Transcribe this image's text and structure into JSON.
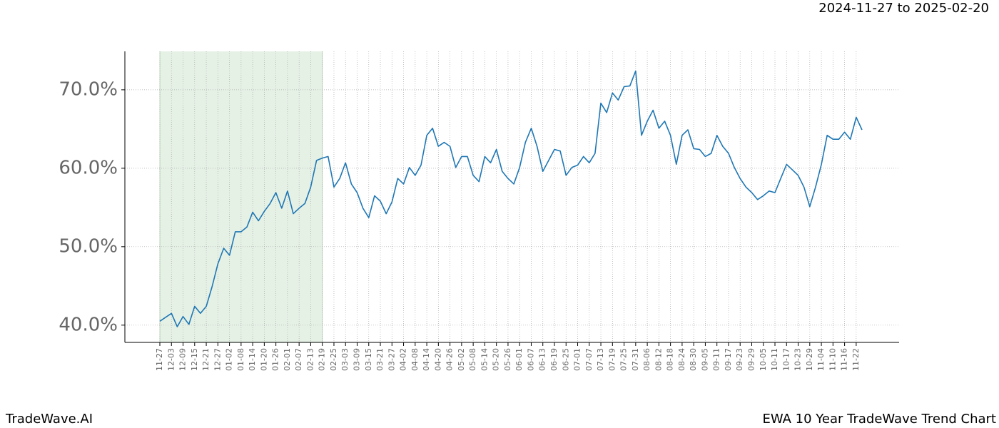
{
  "chart_data": {
    "type": "line",
    "title": "EWA 10 Year TradeWave Trend Chart",
    "date_range": "2024-11-27 to 2025-02-20",
    "brand": "TradeWave.AI",
    "categories": [
      "11-27",
      null,
      "12-03",
      null,
      "12-09",
      null,
      "12-15",
      null,
      "12-21",
      null,
      "12-27",
      null,
      "01-02",
      null,
      "01-08",
      null,
      "01-14",
      null,
      "01-20",
      null,
      "01-26",
      null,
      "02-01",
      null,
      "02-07",
      null,
      "02-13",
      null,
      "02-19",
      null,
      "02-25",
      null,
      "03-03",
      null,
      "03-09",
      null,
      "03-15",
      null,
      "03-21",
      null,
      "03-27",
      null,
      "04-02",
      null,
      "04-08",
      null,
      "04-14",
      null,
      "04-20",
      null,
      "04-26",
      null,
      "05-02",
      null,
      "05-08",
      null,
      "05-14",
      null,
      "05-20",
      null,
      "05-26",
      null,
      "06-01",
      null,
      "06-07",
      null,
      "06-13",
      null,
      "06-19",
      null,
      "06-25",
      null,
      "07-01",
      null,
      "07-07",
      null,
      "07-13",
      null,
      "07-19",
      null,
      "07-25",
      null,
      "07-31",
      null,
      "08-06",
      null,
      "08-12",
      null,
      "08-18",
      null,
      "08-24",
      null,
      "08-30",
      null,
      "09-05",
      null,
      "09-11",
      null,
      "09-17",
      null,
      "09-23",
      null,
      "09-29",
      null,
      "10-05",
      null,
      "10-11",
      null,
      "10-17",
      null,
      "10-23",
      null,
      "10-29",
      null,
      "11-04",
      null,
      "11-10",
      null,
      "11-16",
      null,
      "11-22",
      null
    ],
    "series": [
      {
        "name": "EWA",
        "color": "#1f77b4",
        "values": [
          40.5,
          41,
          41.5,
          39.8,
          41.1,
          40.1,
          42.4,
          41.5,
          42.4,
          44.9,
          47.8,
          49.8,
          48.9,
          51.9,
          51.9,
          52.5,
          54.4,
          53.3,
          54.5,
          55.5,
          56.9,
          54.9,
          57.1,
          54.2,
          54.9,
          55.5,
          57.6,
          61,
          61.3,
          61.5,
          57.6,
          58.7,
          60.7,
          58,
          56.9,
          54.9,
          53.7,
          56.5,
          55.8,
          54.2,
          55.7,
          58.7,
          58,
          60.1,
          59.1,
          60.4,
          64.2,
          65.1,
          62.8,
          63.3,
          62.8,
          60.1,
          61.5,
          61.5,
          59.1,
          58.3,
          61.5,
          60.7,
          62.4,
          59.6,
          58.7,
          58,
          60.1,
          63.3,
          65.1,
          62.8,
          59.6,
          61,
          62.4,
          62.2,
          59.1,
          60.1,
          60.4,
          61.5,
          60.7,
          61.9,
          68.3,
          67.1,
          69.6,
          68.7,
          70.4,
          70.5,
          72.4,
          64.2,
          66,
          67.4,
          65.1,
          66,
          64.2,
          60.5,
          64.2,
          64.9,
          62.5,
          62.4,
          61.5,
          61.9,
          64.2,
          62.8,
          61.9,
          60.1,
          58.7,
          57.6,
          56.9,
          56,
          56.5,
          57.1,
          56.9,
          58.7,
          60.5,
          59.8,
          59.1,
          57.6,
          55.1,
          57.6,
          60.5,
          64.2,
          63.7,
          63.7,
          64.6,
          63.7,
          66.5,
          64.9
        ]
      }
    ],
    "ylim": [
      37.8,
      74.9
    ],
    "yticks": [
      {
        "value": 40,
        "label": "40.0%"
      },
      {
        "value": 50,
        "label": "50.0%"
      },
      {
        "value": 60,
        "label": "60.0%"
      },
      {
        "value": 70,
        "label": "70.0%"
      }
    ],
    "shaded_range": [
      "11-27",
      "02-19"
    ],
    "shade_color": "#2e8b2e",
    "grid": true
  }
}
